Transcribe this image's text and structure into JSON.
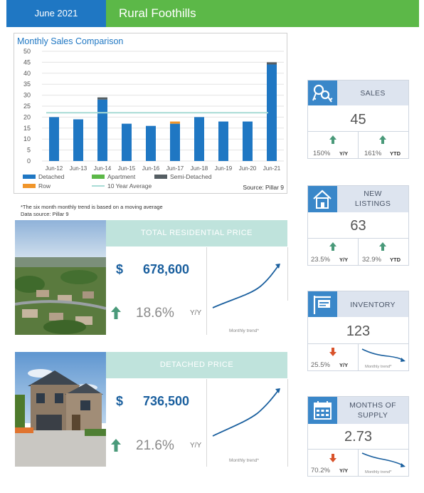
{
  "header": {
    "date": "June 2021",
    "region": "Rural Foothills"
  },
  "chart_data": {
    "type": "bar",
    "title": "Monthly Sales Comparison",
    "categories": [
      "Jun-12",
      "Jun-13",
      "Jun-14",
      "Jun-15",
      "Jun-16",
      "Jun-17",
      "Jun-18",
      "Jun-19",
      "Jun-20",
      "Jun-21"
    ],
    "series": [
      {
        "name": "Detached",
        "values": [
          20,
          19,
          28,
          17,
          16,
          17,
          20,
          18,
          18,
          44
        ]
      },
      {
        "name": "Apartment",
        "values": [
          0,
          0,
          0,
          0,
          0,
          0,
          0,
          0,
          0,
          0
        ]
      },
      {
        "name": "Semi-Detached",
        "values": [
          0,
          0,
          1,
          0,
          0,
          0,
          0,
          0,
          0,
          1
        ]
      },
      {
        "name": "Row",
        "values": [
          0,
          0,
          0,
          0,
          0,
          1,
          0,
          0,
          0,
          0
        ]
      }
    ],
    "reference_line": {
      "name": "10 Year Average",
      "value": 22
    },
    "yticks": [
      0,
      5,
      10,
      15,
      20,
      25,
      30,
      35,
      40,
      45,
      50
    ],
    "ylim": [
      0,
      50
    ],
    "colors": {
      "Detached": "#1f77c3",
      "Apartment": "#5cb848",
      "Semi-Detached": "#555e63",
      "Row": "#f0952a",
      "10 Year Average": "#a8dcd6"
    },
    "source": "Source: Pillar 9",
    "legend_position": "bottom"
  },
  "notes": {
    "line1": "*The six month monthly trend is based on a moving average",
    "line2": "Data source: Pillar 9"
  },
  "total_price": {
    "heading": "TOTAL RESIDENTIAL PRICE",
    "currency": "$",
    "value": "678,600",
    "change": "18.6%",
    "period": "Y/Y",
    "trend_label": "Monthly trend*",
    "direction": "up"
  },
  "detached_price": {
    "heading": "DETACHED PRICE",
    "currency": "$",
    "value": "736,500",
    "change": "21.6%",
    "period": "Y/Y",
    "trend_label": "Monthly trend*",
    "direction": "up"
  },
  "sales": {
    "label": "SALES",
    "icon": "keys-icon",
    "value": "45",
    "yy_change": "150%",
    "yy_label": "Y/Y",
    "ytd_change": "161%",
    "ytd_label": "YTD"
  },
  "new_listings": {
    "label_line1": "NEW",
    "label_line2": "LISTINGS",
    "icon": "house-icon",
    "value": "63",
    "yy_change": "23.5%",
    "yy_label": "Y/Y",
    "ytd_change": "32.9%",
    "ytd_label": "YTD"
  },
  "inventory": {
    "label": "INVENTORY",
    "icon": "for-sale-sign-icon",
    "value": "123",
    "yy_change": "25.5%",
    "yy_label": "Y/Y",
    "trend_label": "Monthly trend*"
  },
  "months_supply": {
    "label_line1": "MONTHS OF",
    "label_line2": "SUPPLY",
    "icon": "calendar-icon",
    "value": "2.73",
    "yy_change": "70.2%",
    "yy_label": "Y/Y",
    "trend_label": "Monthly trend*"
  },
  "colors": {
    "up": "#4a9a7a",
    "down": "#d9532b",
    "accent_blue": "#1f77c3",
    "accent_green": "#5cb848"
  }
}
